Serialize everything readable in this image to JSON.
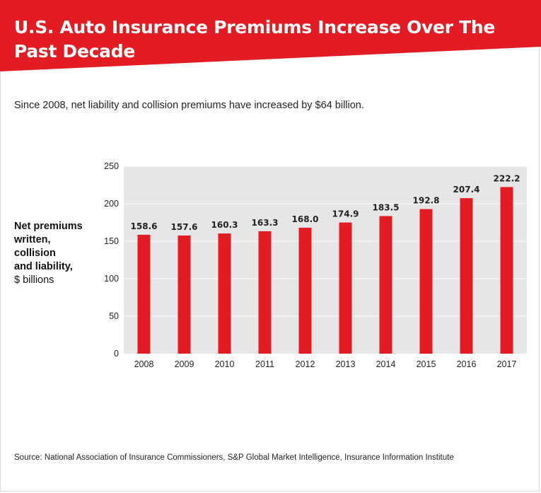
{
  "header": {
    "title": "U.S. Auto Insurance Premiums Increase Over The Past Decade",
    "banner_color": "#e31b23"
  },
  "subtitle": "Since 2008, net liability and collision premiums have increased by $64 billion.",
  "y_axis_label": {
    "lines": [
      "Net premiums",
      "written,",
      "collision",
      "and liability,"
    ],
    "unit": "$ billions"
  },
  "source": "Source: National Association of Insurance Commissioners, S&P Global Market Intelligence, Insurance Information Institute",
  "chart_data": {
    "type": "bar",
    "categories": [
      "2008",
      "2009",
      "2010",
      "2011",
      "2012",
      "2013",
      "2014",
      "2015",
      "2016",
      "2017"
    ],
    "values": [
      158.6,
      157.6,
      160.3,
      163.3,
      168.0,
      174.9,
      183.5,
      192.8,
      207.4,
      222.2
    ],
    "value_labels": [
      "158.6",
      "157.6",
      "160.3",
      "163.3",
      "168.0",
      "174.9",
      "183.5",
      "192.8",
      "207.4",
      "222.2"
    ],
    "ylim": [
      0,
      250
    ],
    "yticks": [
      0,
      50,
      100,
      150,
      200,
      250
    ],
    "grid": true,
    "bar_color": "#e31b23",
    "plot_background": "#e6e6e6",
    "gridline_color": "#ffffff"
  }
}
